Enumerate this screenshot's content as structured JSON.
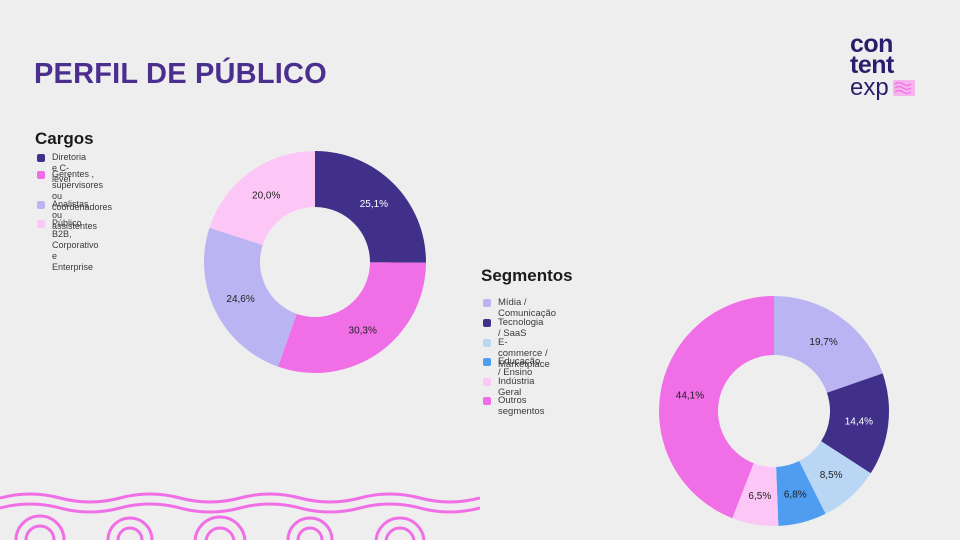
{
  "page": {
    "title": "PERFIL DE PÚBLICO"
  },
  "logo": {
    "word1": "con",
    "word2": "tent",
    "word3": "exp"
  },
  "chart_data": [
    {
      "type": "pie",
      "title": "Cargos",
      "legend_position": "left",
      "labels": [
        "Diretoria e C-level",
        "Gerentes , supervisores\nou coordenadores",
        "Analistas ou assistentes",
        "Público B2B, Corporativo e Enterprise"
      ],
      "values": [
        25.1,
        30.3,
        24.6,
        20.0
      ],
      "value_labels": [
        "25,1%",
        "30,3%",
        "24,6%",
        "20,0%"
      ],
      "colors": [
        "#40308a",
        "#f06ee6",
        "#bbb4f3",
        "#fcc7f6"
      ]
    },
    {
      "type": "pie",
      "title": "Segmentos",
      "legend_position": "left",
      "labels": [
        "Mídia / Comunicação",
        "Tecnologia / SaaS",
        "E-commerce / Marketplace",
        "Educação / Ensino",
        "Indústria Geral",
        "Outros segmentos"
      ],
      "values": [
        19.7,
        14.4,
        8.5,
        6.8,
        6.5,
        44.1
      ],
      "value_labels": [
        "19,7%",
        "14,4%",
        "8,5%",
        "6,8%",
        "6,5%",
        "44,1%"
      ],
      "colors": [
        "#bbb4f3",
        "#40308a",
        "#b9d7f5",
        "#4f9df0",
        "#fcc7f6",
        "#f06ee6"
      ]
    }
  ]
}
